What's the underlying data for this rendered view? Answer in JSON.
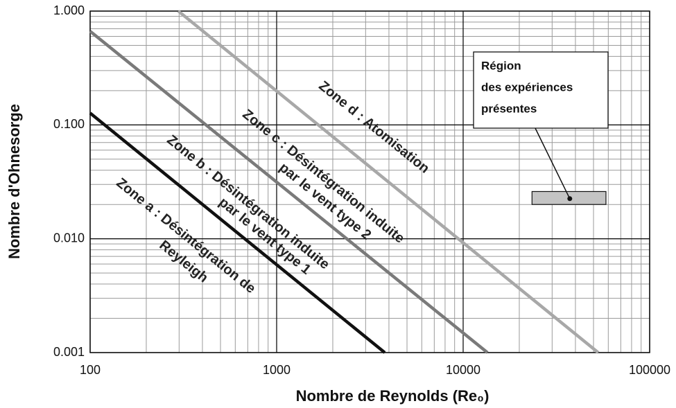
{
  "chart_data": {
    "type": "line",
    "x_label": "Nombre de Reynolds (Re₀)",
    "y_label": "Nombre d'Ohnesorge",
    "xscale": "log",
    "yscale": "log",
    "xlim": [
      100,
      100000
    ],
    "ylim": [
      0.001,
      1
    ],
    "xticks": [
      100,
      1000,
      10000,
      100000
    ],
    "yticks": [
      {
        "value": 0.001,
        "label": "0.001"
      },
      {
        "value": 0.01,
        "label": "0.010"
      },
      {
        "value": 0.1,
        "label": "0.100"
      },
      {
        "value": 1,
        "label": "1.000"
      }
    ],
    "grid": true,
    "minor_grid": true,
    "series": [
      {
        "color": "#111111",
        "x": [
          100,
          3800
        ],
        "values": [
          0.127,
          0.001
        ]
      },
      {
        "color": "#7a7a7a",
        "x": [
          100,
          13500
        ],
        "values": [
          0.665,
          0.001
        ]
      },
      {
        "color": "#a8a8a8",
        "x": [
          297,
          53000
        ],
        "values": [
          1,
          0.001
        ]
      }
    ],
    "zones": [
      [
        "Zone a : Désintégration de",
        "Reyleigh"
      ],
      [
        "Zone b : Désintégration induite",
        "par le vent type 1"
      ],
      [
        "Zone c : Désintégration induite",
        "par le vent type 2"
      ],
      [
        "Zone d : Atomisation"
      ]
    ],
    "region": {
      "x": [
        23400,
        58300
      ],
      "y": [
        0.02,
        0.026
      ],
      "point": [
        37300,
        0.0225
      ],
      "label": [
        "Région",
        "des expériences",
        "présentes"
      ]
    }
  }
}
